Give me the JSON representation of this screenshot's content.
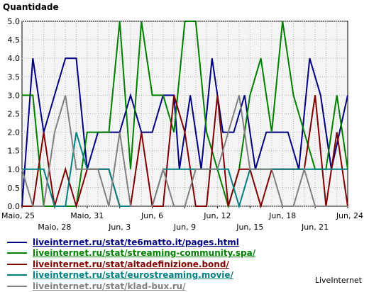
{
  "chart_data": {
    "type": "line",
    "ylabel": "Quantidade",
    "ylim": [
      0,
      5
    ],
    "yticks": [
      "0.0",
      "0.5",
      "1.0",
      "1.5",
      "2.0",
      "2.5",
      "3.0",
      "3.5",
      "4.0",
      "4.5",
      "5.0"
    ],
    "xlim": [
      0,
      60
    ],
    "xticks": [
      {
        "label": "Maio, 25",
        "x": 0,
        "row": 0
      },
      {
        "label": "Maio, 28",
        "x": 6,
        "row": 1
      },
      {
        "label": "Maio, 31",
        "x": 12,
        "row": 0
      },
      {
        "label": "Jun, 3",
        "x": 18,
        "row": 1
      },
      {
        "label": "Jun, 6",
        "x": 24,
        "row": 0
      },
      {
        "label": "Jun, 9",
        "x": 30,
        "row": 1
      },
      {
        "label": "Jun, 12",
        "x": 36,
        "row": 0
      },
      {
        "label": "Jun, 15",
        "x": 42,
        "row": 1
      },
      {
        "label": "Jun, 18",
        "x": 48,
        "row": 0
      },
      {
        "label": "Jun, 21",
        "x": 54,
        "row": 1
      },
      {
        "label": "Jun, 24",
        "x": 60,
        "row": 0
      }
    ],
    "grid": true,
    "legend_position": "bottom",
    "series": [
      {
        "name": "liveinternet.ru/stat/te6matto.it/pages.html",
        "color": "#000080",
        "points": [
          [
            0,
            0
          ],
          [
            2,
            4
          ],
          [
            4,
            2
          ],
          [
            6,
            3
          ],
          [
            8,
            4
          ],
          [
            10,
            4
          ],
          [
            12,
            1
          ],
          [
            14,
            2
          ],
          [
            16,
            2
          ],
          [
            18,
            2
          ],
          [
            20,
            3
          ],
          [
            22,
            2
          ],
          [
            24,
            2
          ],
          [
            26,
            3
          ],
          [
            28,
            3
          ],
          [
            29,
            1
          ],
          [
            31,
            3
          ],
          [
            33,
            1
          ],
          [
            35,
            4
          ],
          [
            37,
            2
          ],
          [
            39,
            2
          ],
          [
            41,
            3
          ],
          [
            43,
            1
          ],
          [
            45,
            2
          ],
          [
            47,
            2
          ],
          [
            49,
            2
          ],
          [
            51,
            1
          ],
          [
            53,
            4
          ],
          [
            55,
            3
          ],
          [
            57,
            1
          ],
          [
            60,
            3
          ]
        ]
      },
      {
        "name": "liveinternet.ru/stat/streaming-community.spa/",
        "color": "#008000",
        "points": [
          [
            0,
            3
          ],
          [
            2,
            3
          ],
          [
            4,
            0
          ],
          [
            6,
            0
          ],
          [
            8,
            0
          ],
          [
            10,
            0
          ],
          [
            12,
            2
          ],
          [
            14,
            2
          ],
          [
            16,
            2
          ],
          [
            18,
            5
          ],
          [
            20,
            1
          ],
          [
            22,
            5
          ],
          [
            24,
            3
          ],
          [
            26,
            3
          ],
          [
            28,
            2
          ],
          [
            30,
            5
          ],
          [
            32,
            5
          ],
          [
            34,
            2
          ],
          [
            36,
            1
          ],
          [
            38,
            0
          ],
          [
            40,
            1
          ],
          [
            42,
            3
          ],
          [
            44,
            4
          ],
          [
            46,
            2
          ],
          [
            48,
            5
          ],
          [
            50,
            3
          ],
          [
            52,
            2
          ],
          [
            54,
            1
          ],
          [
            56,
            1
          ],
          [
            58,
            3
          ],
          [
            60,
            1
          ]
        ]
      },
      {
        "name": "liveinternet.ru/stat/altadefinizione.bond/",
        "color": "#800000",
        "points": [
          [
            0,
            0
          ],
          [
            2,
            0
          ],
          [
            4,
            2
          ],
          [
            6,
            0
          ],
          [
            8,
            1
          ],
          [
            10,
            0
          ],
          [
            12,
            1
          ],
          [
            14,
            1
          ],
          [
            16,
            1
          ],
          [
            18,
            0
          ],
          [
            20,
            0
          ],
          [
            22,
            2
          ],
          [
            24,
            0
          ],
          [
            26,
            0
          ],
          [
            28,
            3
          ],
          [
            30,
            2
          ],
          [
            32,
            0
          ],
          [
            34,
            0
          ],
          [
            36,
            3
          ],
          [
            38,
            0
          ],
          [
            40,
            1
          ],
          [
            42,
            1
          ],
          [
            44,
            0
          ],
          [
            46,
            1
          ],
          [
            48,
            1
          ],
          [
            50,
            1
          ],
          [
            52,
            1
          ],
          [
            54,
            3
          ],
          [
            56,
            0
          ],
          [
            58,
            2
          ],
          [
            60,
            0
          ]
        ]
      },
      {
        "name": "liveinternet.ru/stat/eurostreaming.movie/",
        "color": "#008080",
        "points": [
          [
            0,
            1
          ],
          [
            2,
            1
          ],
          [
            4,
            1
          ],
          [
            6,
            0
          ],
          [
            8,
            0
          ],
          [
            10,
            2
          ],
          [
            12,
            1
          ],
          [
            14,
            1
          ],
          [
            16,
            1
          ],
          [
            18,
            0
          ],
          [
            20,
            0
          ],
          [
            22,
            0
          ],
          [
            24,
            0
          ],
          [
            26,
            1
          ],
          [
            28,
            1
          ],
          [
            30,
            1
          ],
          [
            32,
            1
          ],
          [
            34,
            1
          ],
          [
            36,
            1
          ],
          [
            38,
            1
          ],
          [
            40,
            0
          ],
          [
            42,
            1
          ],
          [
            44,
            1
          ],
          [
            46,
            1
          ],
          [
            48,
            1
          ],
          [
            50,
            1
          ],
          [
            52,
            1
          ],
          [
            54,
            1
          ],
          [
            56,
            1
          ],
          [
            58,
            1
          ],
          [
            60,
            1
          ]
        ]
      },
      {
        "name": "liveinternet.ru/stat/klad-bux.ru/",
        "color": "#808080",
        "points": [
          [
            0,
            1
          ],
          [
            2,
            0
          ],
          [
            4,
            0
          ],
          [
            6,
            2
          ],
          [
            8,
            3
          ],
          [
            10,
            1
          ],
          [
            12,
            1
          ],
          [
            14,
            1
          ],
          [
            16,
            0
          ],
          [
            18,
            2
          ],
          [
            20,
            0
          ],
          [
            22,
            0
          ],
          [
            24,
            0
          ],
          [
            26,
            1
          ],
          [
            28,
            0
          ],
          [
            30,
            0
          ],
          [
            32,
            1
          ],
          [
            34,
            1
          ],
          [
            36,
            1
          ],
          [
            38,
            2
          ],
          [
            40,
            3
          ],
          [
            42,
            1
          ],
          [
            44,
            1
          ],
          [
            46,
            1
          ],
          [
            48,
            0
          ],
          [
            50,
            0
          ],
          [
            52,
            1
          ],
          [
            54,
            0
          ],
          [
            56,
            0
          ],
          [
            58,
            0
          ],
          [
            60,
            0
          ]
        ]
      }
    ]
  },
  "brand": "LiveInternet"
}
